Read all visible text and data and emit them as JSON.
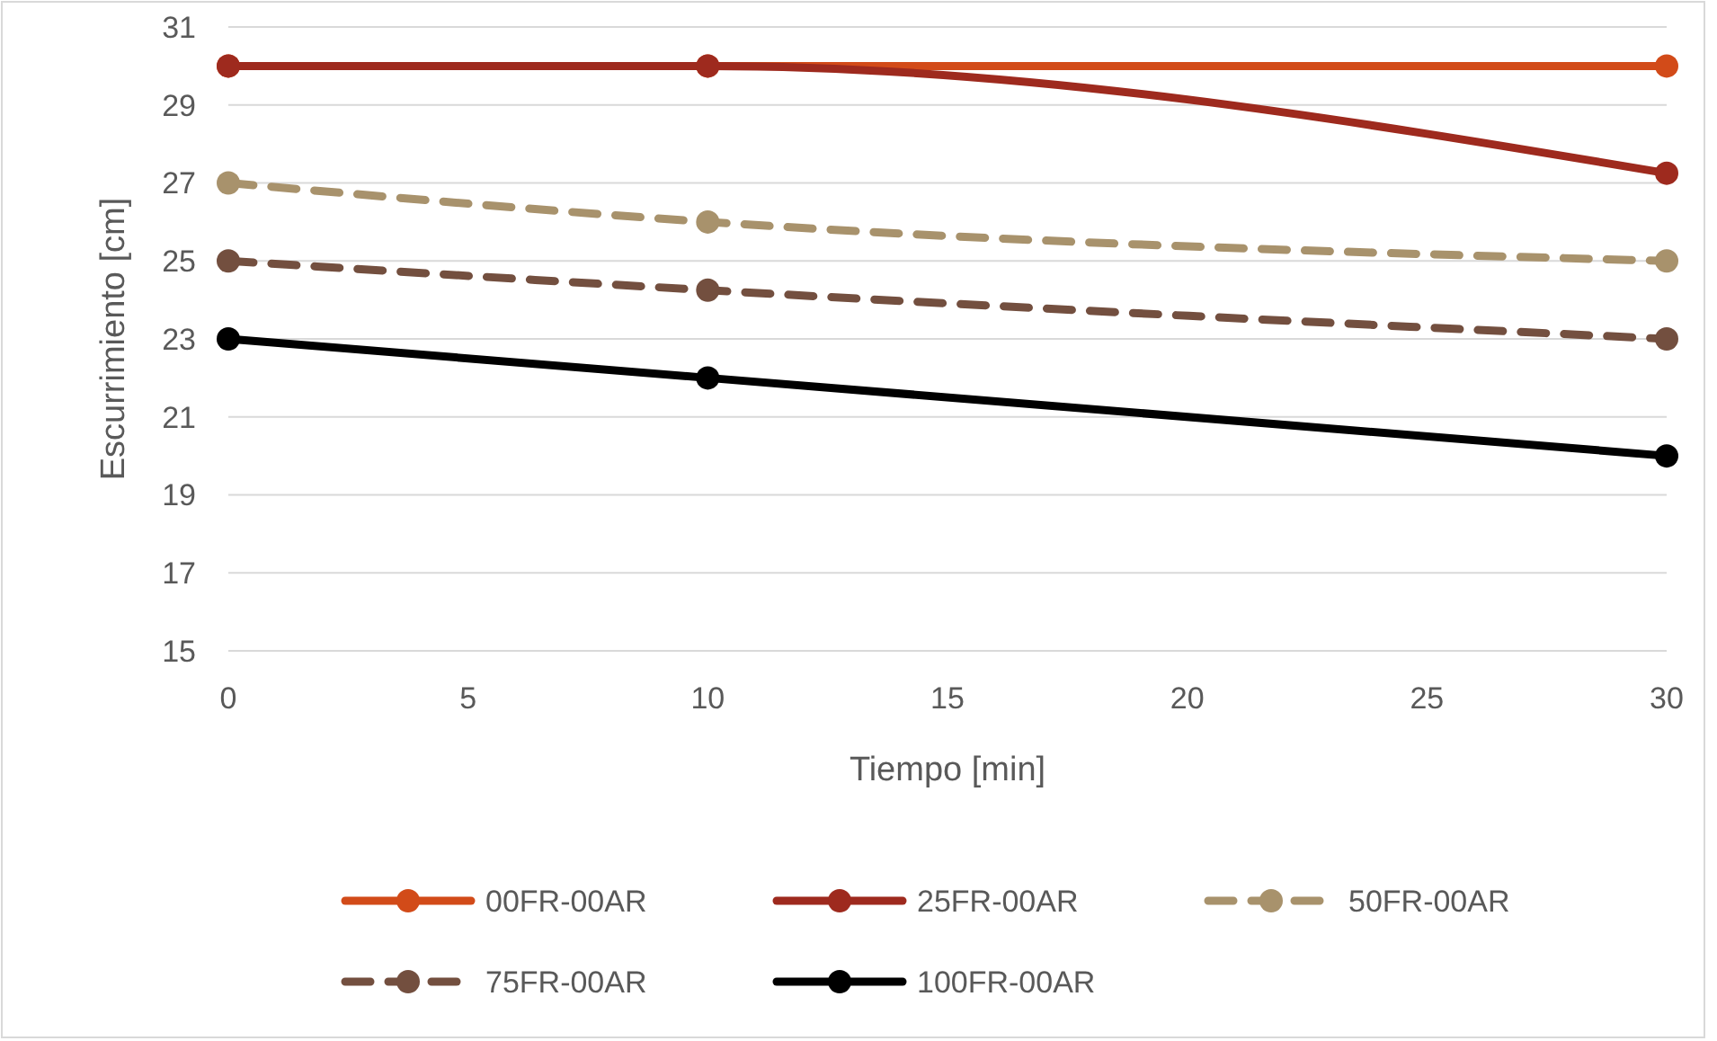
{
  "chart_data": {
    "type": "line",
    "xlabel": "Tiempo [min]",
    "ylabel": "Escurrimiento [cm]",
    "x": [
      0,
      10,
      30
    ],
    "xlim": [
      0,
      30
    ],
    "xticks": [
      0,
      5,
      10,
      15,
      20,
      25,
      30
    ],
    "ylim": [
      15,
      31
    ],
    "yticks": [
      15,
      17,
      19,
      21,
      23,
      25,
      27,
      29,
      31
    ],
    "grid": "y",
    "legend": "bottom",
    "marker": "circle",
    "series": [
      {
        "name": "00FR-00AR",
        "color": "#d24b19",
        "values": [
          30,
          30,
          30
        ],
        "line_style": "solid"
      },
      {
        "name": "25FR-00AR",
        "color": "#9e2a1e",
        "values": [
          30,
          30,
          27.25
        ],
        "line_style": "solid"
      },
      {
        "name": "50FR-00AR",
        "color": "#a8926c",
        "values": [
          27,
          26,
          25
        ],
        "line_style": "dashed"
      },
      {
        "name": "75FR-00AR",
        "color": "#734f3f",
        "values": [
          25,
          24.25,
          23
        ],
        "line_style": "dashed"
      },
      {
        "name": "100FR-00AR",
        "color": "#000000",
        "values": [
          23,
          22,
          20
        ],
        "line_style": "solid"
      }
    ]
  }
}
